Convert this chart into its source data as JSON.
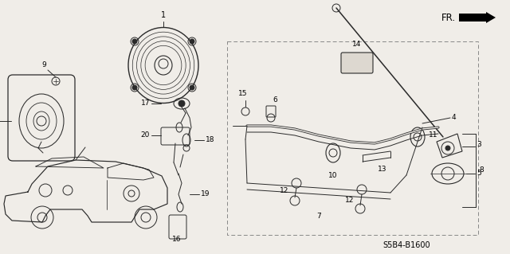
{
  "bg_color": "#f0ede8",
  "diagram_code": "S5B4-B1600",
  "line_color": "#2a2a2a",
  "label_color": "#000000"
}
